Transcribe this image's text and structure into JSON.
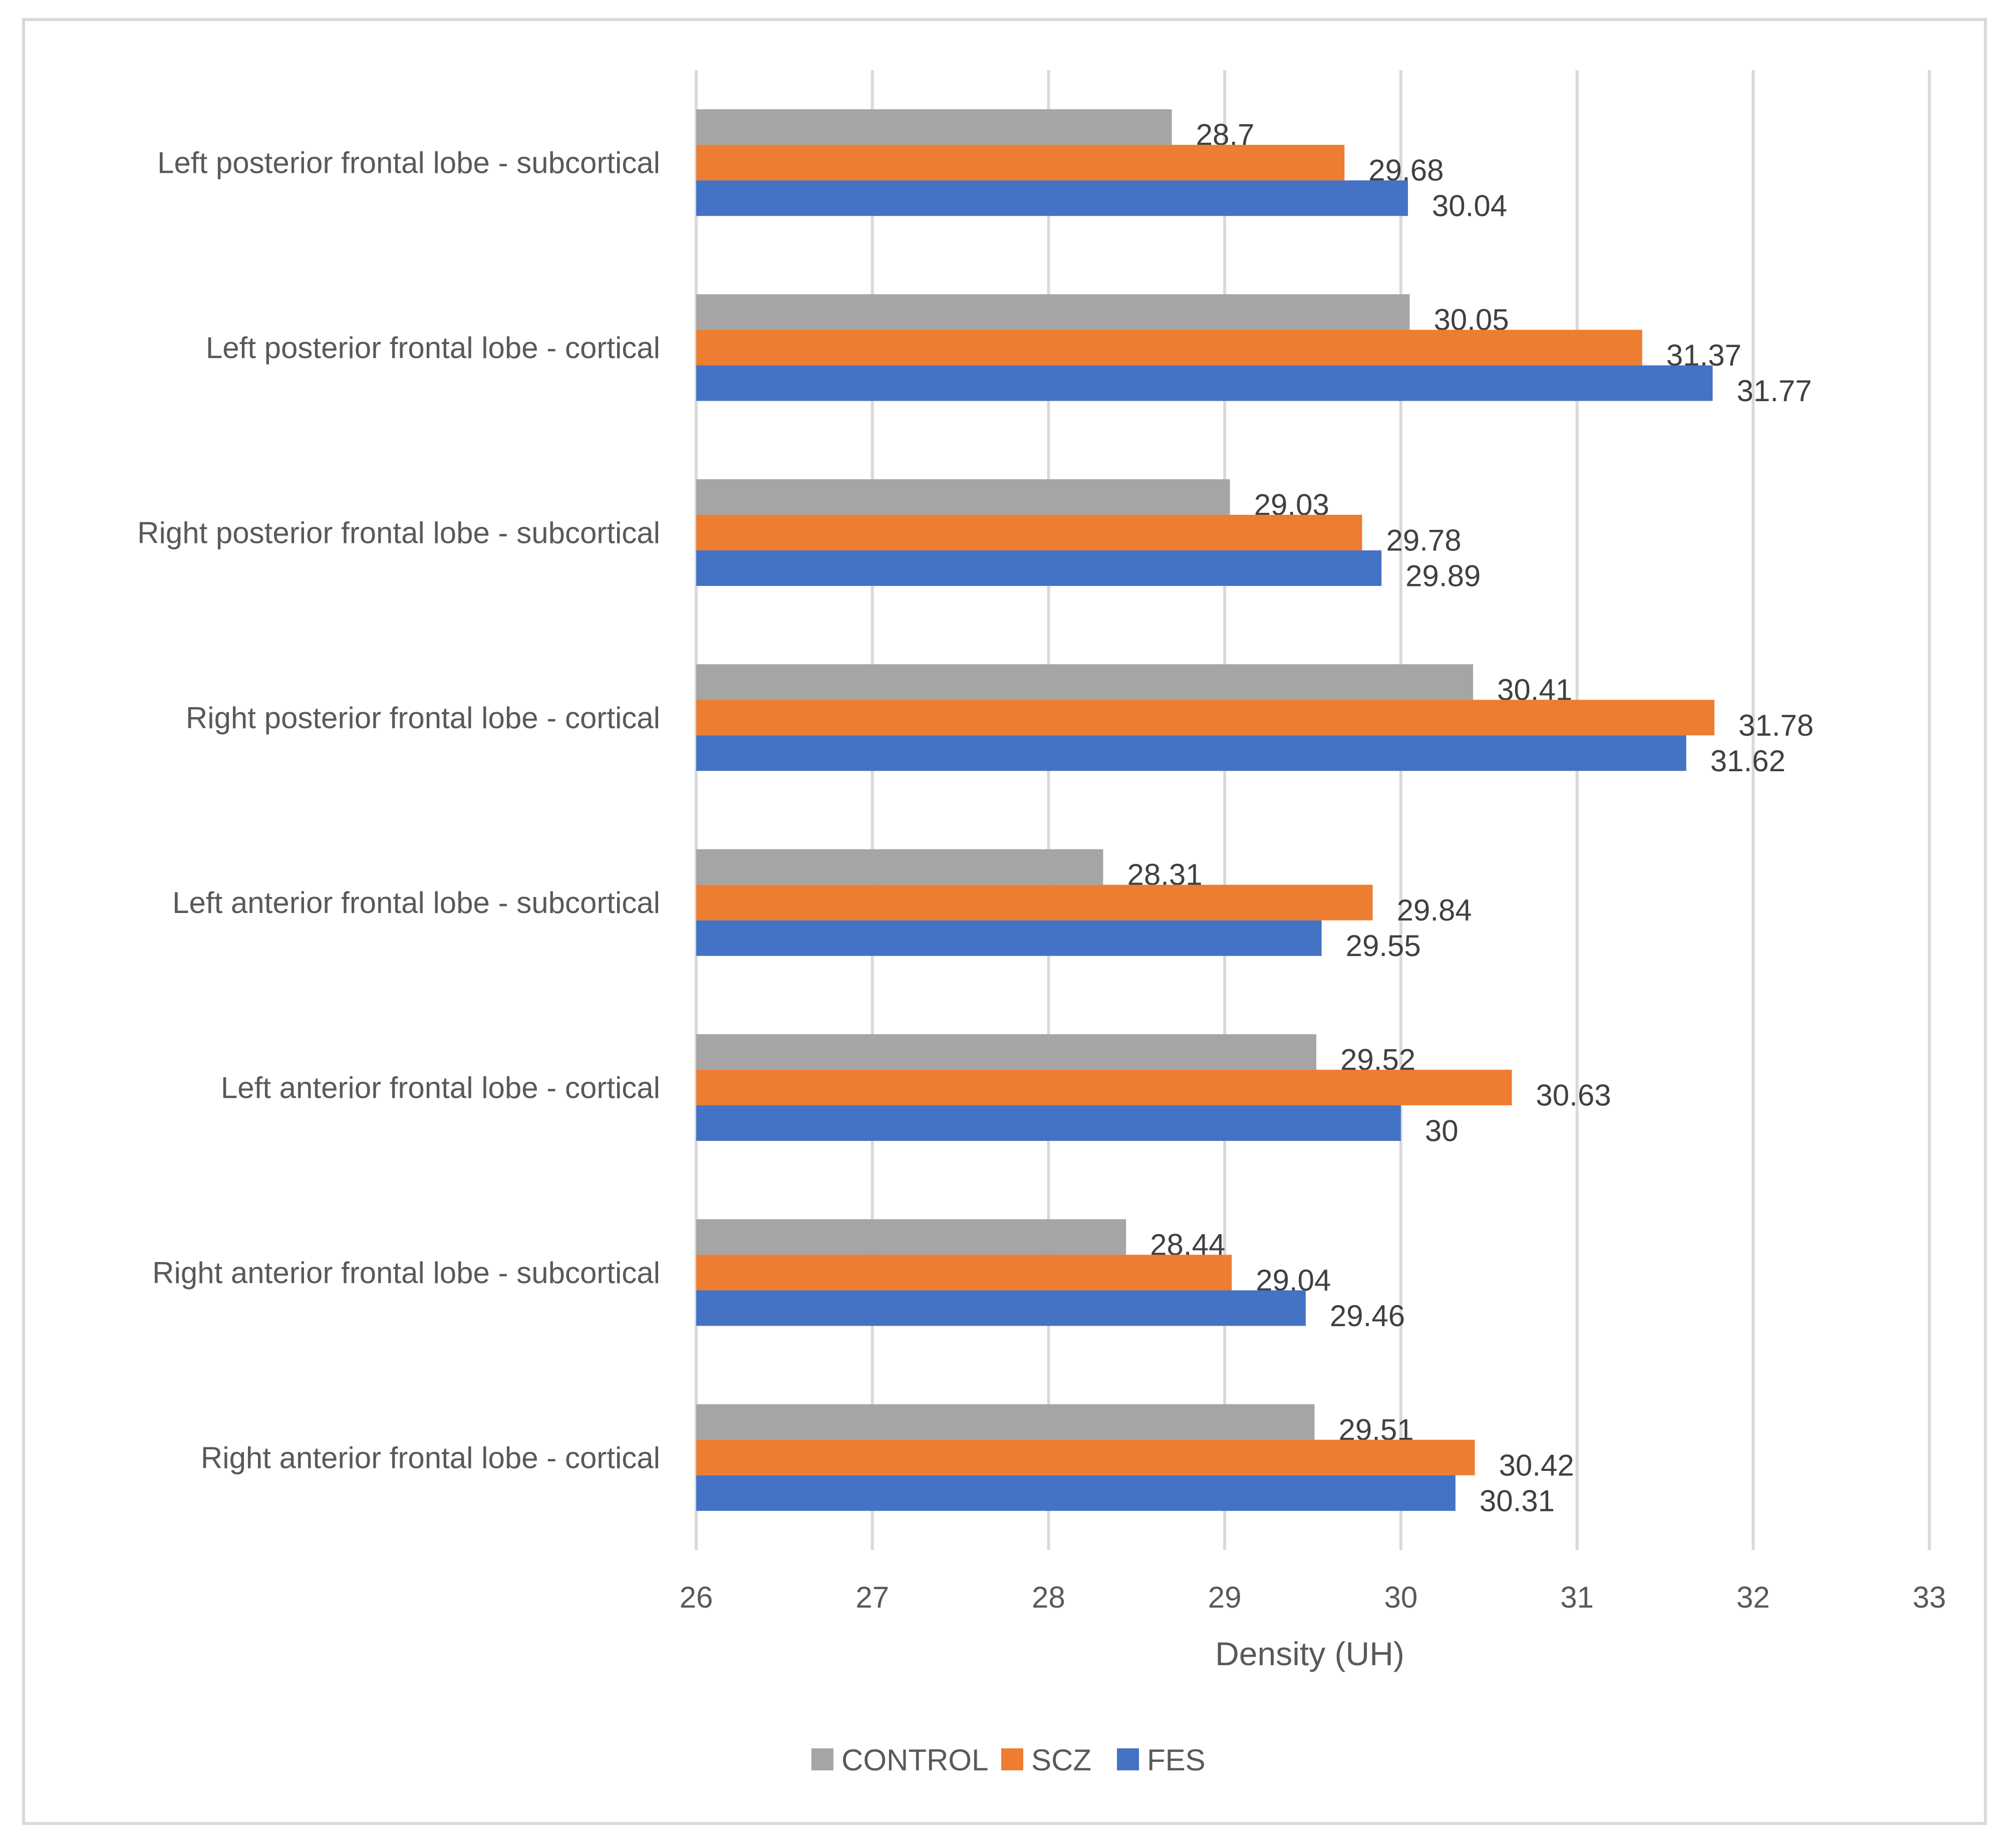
{
  "chart_data": {
    "type": "bar",
    "orientation": "horizontal",
    "title": "",
    "xlabel": "Density (UH)",
    "ylabel": "",
    "xlim": [
      26,
      33
    ],
    "x_ticks": [
      "26",
      "27",
      "28",
      "29",
      "30",
      "31",
      "32",
      "33"
    ],
    "grid": "vertical",
    "legend_position": "bottom",
    "categories": [
      "Left posterior frontal lobe - subcortical",
      "Left posterior frontal lobe - cortical",
      "Right posterior frontal lobe - subcortical",
      "Right posterior frontal lobe - cortical",
      "Left anterior frontal lobe - subcortical",
      "Left anterior frontal lobe - cortical",
      "Right anterior frontal lobe - subcortical",
      "Right anterior frontal lobe - cortical"
    ],
    "series": [
      {
        "name": "CONTROL",
        "color": "#a5a5a5",
        "values": [
          28.7,
          30.05,
          29.03,
          30.41,
          28.31,
          29.52,
          28.44,
          29.51
        ],
        "labels": [
          "28.7",
          "30.05",
          "29.03",
          "30.41",
          "28.31",
          "29.52",
          "28.44",
          "29.51"
        ]
      },
      {
        "name": "SCZ",
        "color": "#ed7d31",
        "values": [
          29.68,
          31.37,
          29.78,
          31.78,
          29.84,
          30.63,
          29.04,
          30.42
        ],
        "labels": [
          "29.68",
          "31.37",
          "29.78",
          "31.78",
          "29.84",
          "30.63",
          "29.04",
          "30.42"
        ]
      },
      {
        "name": "FES",
        "color": "#4472c4",
        "values": [
          30.04,
          31.77,
          29.89,
          31.62,
          29.55,
          30,
          29.46,
          30.31
        ],
        "labels": [
          "30.04",
          "31.77",
          "29.89",
          "31.62",
          "29.55",
          "30",
          "29.46",
          "30.31"
        ]
      }
    ],
    "colors": {
      "grid": "#d9d9d9",
      "border": "#d9d9d9"
    }
  }
}
